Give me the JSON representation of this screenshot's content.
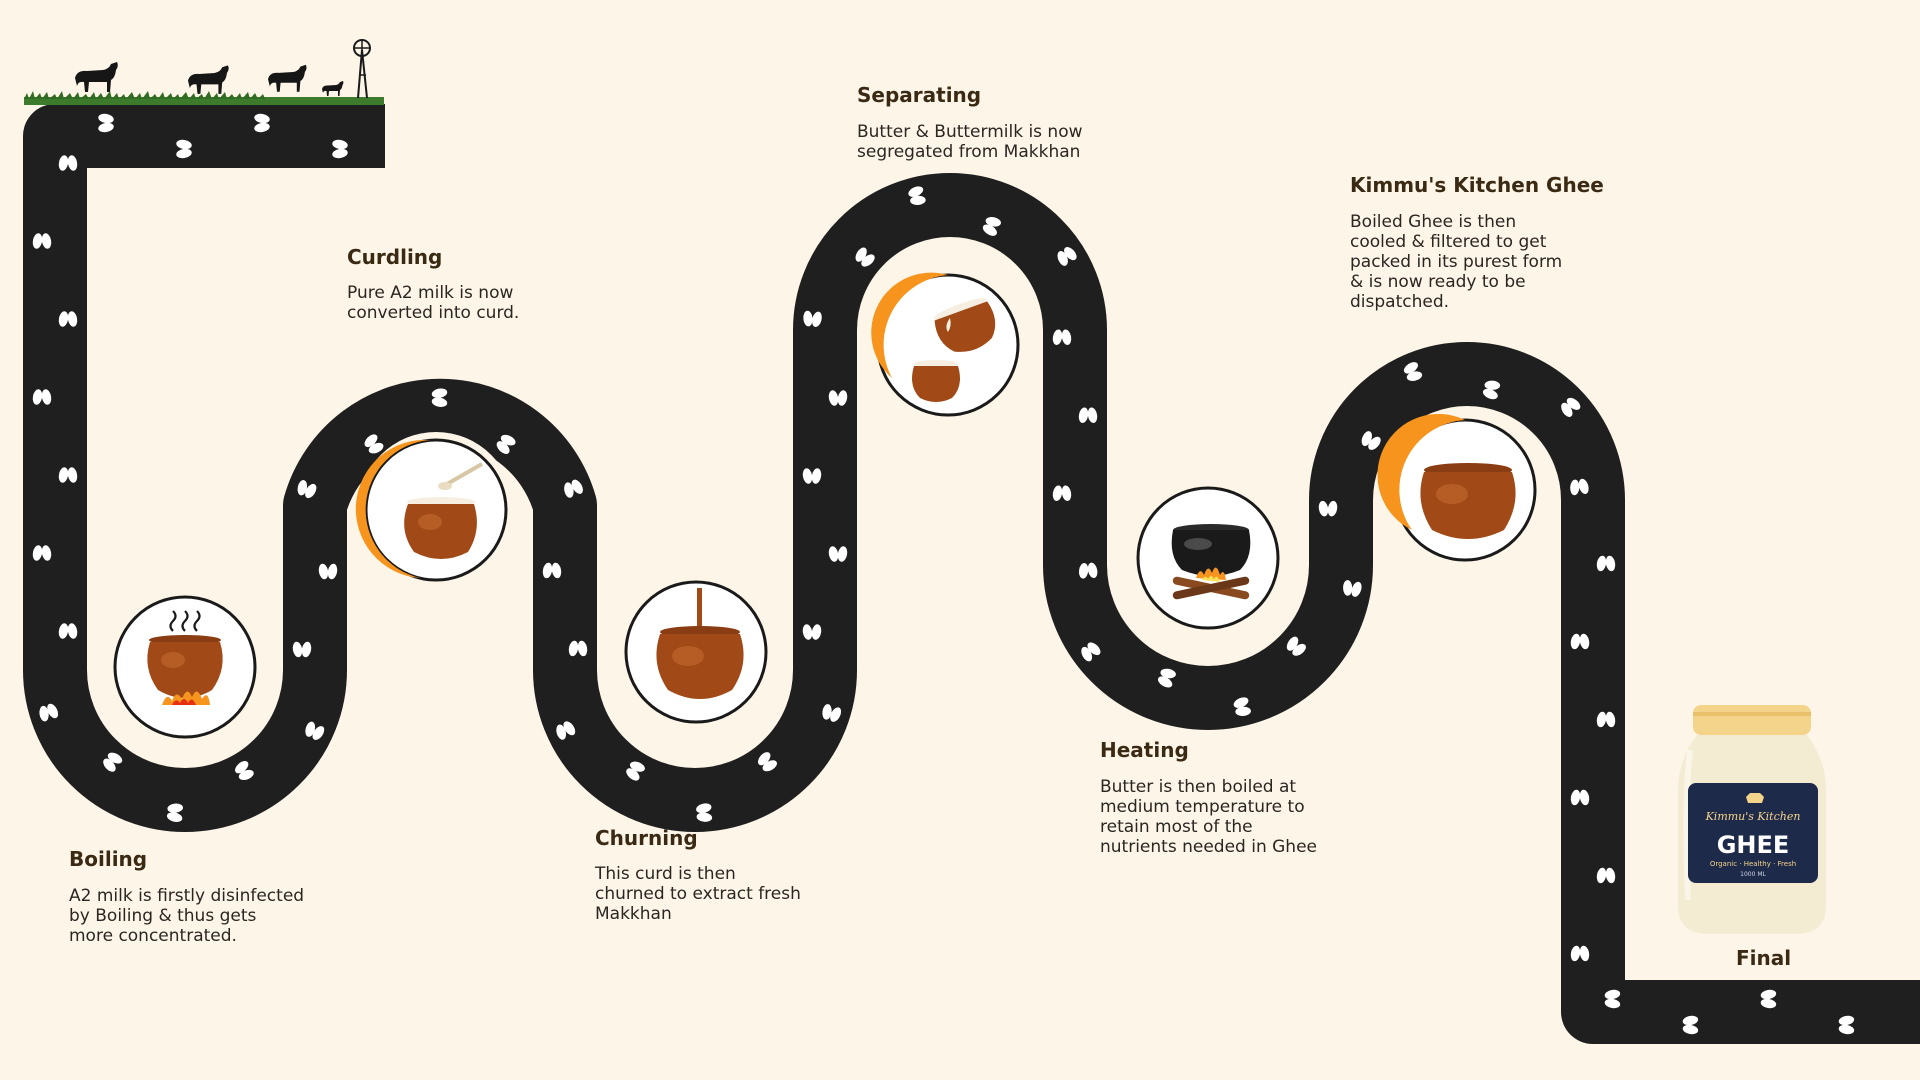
{
  "colors": {
    "background": "#fdf5e7",
    "road": "#1f1f1f",
    "accent_orange": "#f7941d",
    "pot_brown": "#a14a17",
    "text_dark": "#3a2a14"
  },
  "steps": [
    {
      "key": "boiling",
      "title": "Boiling",
      "description": "A2 milk is firstly disinfected\nby Boiling & thus gets\nmore concentrated.",
      "icon": "boiling-pot-icon"
    },
    {
      "key": "curdling",
      "title": "Curdling",
      "description": "Pure A2 milk is now\nconverted into curd.",
      "icon": "curd-pot-icon"
    },
    {
      "key": "churning",
      "title": "Churning",
      "description": "This curd is then\nchurned to extract fresh\nMakkhan",
      "icon": "churning-pot-icon"
    },
    {
      "key": "separating",
      "title": "Separating",
      "description": "Butter & Buttermilk is now\nsegregated from Makkhan",
      "icon": "separating-pots-icon"
    },
    {
      "key": "heating",
      "title": "Heating",
      "description": "Butter is then boiled at\nmedium temperature to\nretain most of the\nnutrients needed in Ghee",
      "icon": "cauldron-fire-icon"
    },
    {
      "key": "kimmus_ghee",
      "title": "Kimmu's Kitchen Ghee",
      "description": "Boiled Ghee is then\ncooled & filtered to get\npacked in its purest form\n& is now ready to be\ndispatched.",
      "icon": "ghee-pot-icon"
    }
  ],
  "final": {
    "label": "Final",
    "jar": {
      "brand_text": "Kimmu's Kitchen",
      "product_text": "GHEE",
      "tagline_text": "Organic · Healthy · Fresh",
      "volume_text": "1000 ML"
    }
  }
}
